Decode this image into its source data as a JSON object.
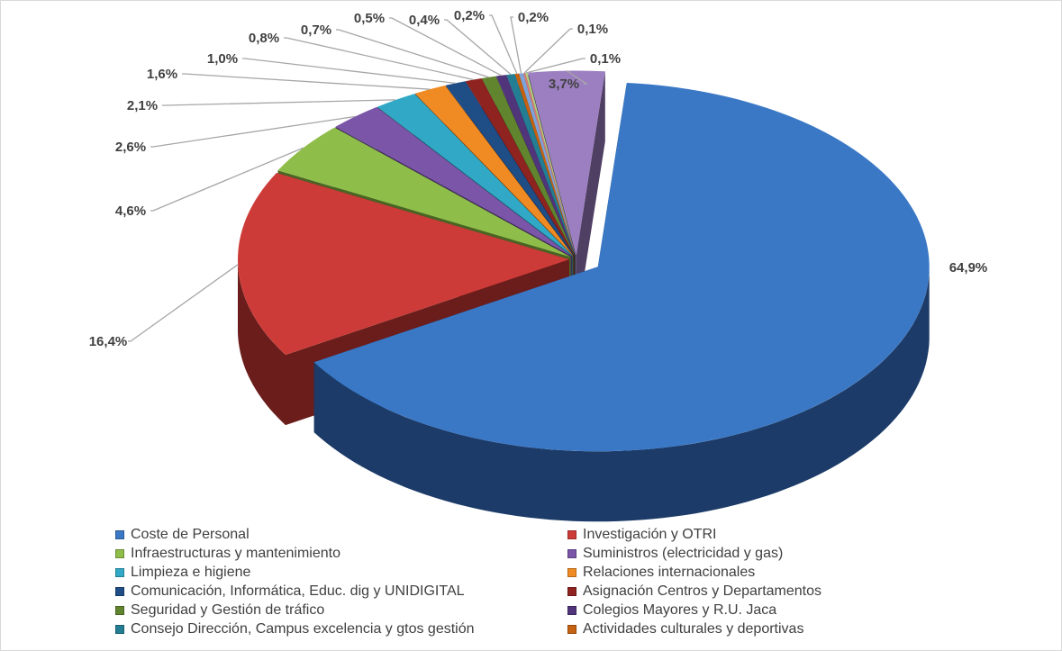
{
  "chart_data": {
    "type": "pie",
    "title": "",
    "legend_position": "bottom",
    "slices": [
      {
        "name": "Coste de Personal",
        "value": 64.9,
        "label": "64,9%",
        "color": "#3a78c6",
        "side": "#1c3b68"
      },
      {
        "name": "Investigación y OTRI",
        "value": 16.4,
        "label": "16,4%",
        "color": "#cc3b38",
        "side": "#6a1d1b"
      },
      {
        "name": "Infraestructuras y mantenimiento",
        "value": 4.6,
        "label": "4,6%",
        "color": "#8fbd4a",
        "side": "#4a6424"
      },
      {
        "name": "Suministros (electricidad y gas)",
        "value": 2.6,
        "label": "2,6%",
        "color": "#7a55a8",
        "side": "#3e2a57"
      },
      {
        "name": "Limpieza e higiene",
        "value": 2.1,
        "label": "2,1%",
        "color": "#31a9c6",
        "side": "#175766"
      },
      {
        "name": "Relaciones internacionales",
        "value": 1.6,
        "label": "1,6%",
        "color": "#f08a22",
        "side": "#7d440e"
      },
      {
        "name": "Comunicación, Informática, Educ. dig y UNIDIGITAL",
        "value": 1.0,
        "label": "1,0%",
        "color": "#1f4d86",
        "side": "#0f2744"
      },
      {
        "name": "Asignación Centros y Departamentos",
        "value": 0.8,
        "label": "0,8%",
        "color": "#8f2320",
        "side": "#4a1110"
      },
      {
        "name": "Seguridad y Gestión de tráfico",
        "value": 0.7,
        "label": "0,7%",
        "color": "#60852e",
        "side": "#314416"
      },
      {
        "name": "Colegios Mayores y R.U. Jaca",
        "value": 0.5,
        "label": "0,5%",
        "color": "#51357a",
        "side": "#291b3e"
      },
      {
        "name": "Consejo Dirección, Campus excelencia y gtos gestión",
        "value": 0.4,
        "label": "0,4%",
        "color": "#237e94",
        "side": "#113f4a"
      },
      {
        "name": "Actividades culturales y deportivas",
        "value": 0.2,
        "label": "0,2%",
        "color": "#c56212",
        "side": "#633108"
      },
      {
        "name": "",
        "value": 0.2,
        "label": "0,2%",
        "color": "#7da4da",
        "side": "#3d5478"
      },
      {
        "name": "",
        "value": 0.1,
        "label": "0,1%",
        "color": "#d97a78",
        "side": "#6e3b3a"
      },
      {
        "name": "",
        "value": 0.1,
        "label": "0,1%",
        "color": "#b3d07e",
        "side": "#5a6a3c"
      },
      {
        "name": "",
        "value": 3.7,
        "label": "3,7%",
        "color": "#9c7fc1",
        "side": "#4f3f63"
      }
    ]
  }
}
